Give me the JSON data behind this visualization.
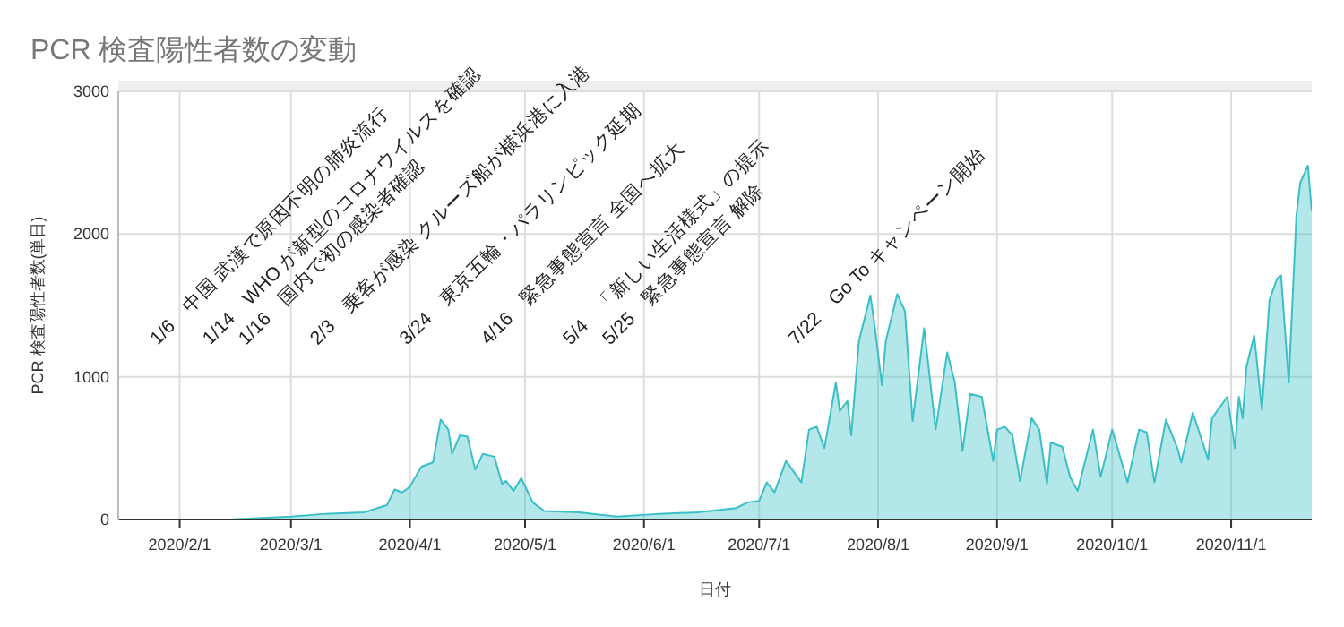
{
  "chart_data": {
    "type": "area",
    "title": "PCR 検査陽性者数の変動",
    "xlabel": "日付",
    "ylabel": "PCR 検査陽性者数(単日)",
    "xlim": [
      "2020-01-16",
      "2020-11-22"
    ],
    "ylim": [
      0,
      3000
    ],
    "yticks": [
      0,
      1000,
      2000,
      3000
    ],
    "xticks": [
      {
        "value": "2020-02-01",
        "label": "2020/2/1"
      },
      {
        "value": "2020-03-01",
        "label": "2020/3/1"
      },
      {
        "value": "2020-04-01",
        "label": "2020/4/1"
      },
      {
        "value": "2020-05-01",
        "label": "2020/5/1"
      },
      {
        "value": "2020-06-01",
        "label": "2020/6/1"
      },
      {
        "value": "2020-07-01",
        "label": "2020/7/1"
      },
      {
        "value": "2020-08-01",
        "label": "2020/8/1"
      },
      {
        "value": "2020-09-01",
        "label": "2020/9/1"
      },
      {
        "value": "2020-10-01",
        "label": "2020/10/1"
      },
      {
        "value": "2020-11-01",
        "label": "2020/11/1"
      }
    ],
    "grid": true,
    "x": [
      "2020-01-16",
      "2020-02-14",
      "2020-03-01",
      "2020-03-10",
      "2020-03-20",
      "2020-03-26",
      "2020-03-28",
      "2020-03-30",
      "2020-04-01",
      "2020-04-04",
      "2020-04-07",
      "2020-04-09",
      "2020-04-11",
      "2020-04-12",
      "2020-04-14",
      "2020-04-16",
      "2020-04-18",
      "2020-04-20",
      "2020-04-23",
      "2020-04-25",
      "2020-04-26",
      "2020-04-28",
      "2020-04-30",
      "2020-05-03",
      "2020-05-06",
      "2020-05-15",
      "2020-05-25",
      "2020-06-05",
      "2020-06-15",
      "2020-06-25",
      "2020-06-28",
      "2020-07-01",
      "2020-07-03",
      "2020-07-05",
      "2020-07-08",
      "2020-07-12",
      "2020-07-14",
      "2020-07-16",
      "2020-07-18",
      "2020-07-21",
      "2020-07-22",
      "2020-07-24",
      "2020-07-25",
      "2020-07-27",
      "2020-07-30",
      "2020-07-31",
      "2020-08-02",
      "2020-08-03",
      "2020-08-06",
      "2020-08-08",
      "2020-08-10",
      "2020-08-13",
      "2020-08-16",
      "2020-08-19",
      "2020-08-21",
      "2020-08-23",
      "2020-08-25",
      "2020-08-28",
      "2020-08-31",
      "2020-09-01",
      "2020-09-03",
      "2020-09-05",
      "2020-09-07",
      "2020-09-10",
      "2020-09-12",
      "2020-09-14",
      "2020-09-15",
      "2020-09-18",
      "2020-09-20",
      "2020-09-22",
      "2020-09-26",
      "2020-09-28",
      "2020-10-01",
      "2020-10-05",
      "2020-10-08",
      "2020-10-10",
      "2020-10-12",
      "2020-10-15",
      "2020-10-18",
      "2020-10-19",
      "2020-10-22",
      "2020-10-26",
      "2020-10-27",
      "2020-10-31",
      "2020-11-02",
      "2020-11-03",
      "2020-11-04",
      "2020-11-05",
      "2020-11-07",
      "2020-11-09",
      "2020-11-11",
      "2020-11-13",
      "2020-11-14",
      "2020-11-16",
      "2020-11-18",
      "2020-11-19",
      "2020-11-21",
      "2020-11-22"
    ],
    "series": [
      {
        "color": "#3bbfc6",
        "values": [
          0,
          0,
          20,
          40,
          50,
          100,
          210,
          190,
          230,
          370,
          400,
          700,
          630,
          460,
          590,
          580,
          350,
          460,
          440,
          250,
          270,
          200,
          290,
          120,
          60,
          50,
          20,
          40,
          50,
          80,
          120,
          130,
          260,
          190,
          410,
          260,
          630,
          650,
          500,
          960,
          760,
          830,
          590,
          1250,
          1570,
          1380,
          940,
          1250,
          1580,
          1460,
          690,
          1340,
          630,
          1170,
          960,
          480,
          880,
          860,
          410,
          630,
          650,
          590,
          270,
          710,
          630,
          250,
          540,
          510,
          300,
          200,
          630,
          300,
          630,
          260,
          630,
          610,
          260,
          700,
          500,
          400,
          750,
          420,
          710,
          860,
          500,
          860,
          710,
          1070,
          1290,
          770,
          1540,
          1690,
          1710,
          960,
          2130,
          2360,
          2480,
          2160
        ]
      }
    ],
    "annotations": [
      {
        "text": "1/6　中国 武漢で原因不明の肺炎流行"
      },
      {
        "text": "1/14　WHO が新型のコロナウイルスを確認"
      },
      {
        "text": "1/16　国内で初の感染者確認"
      },
      {
        "text": "2/3　乗客が感染 クルーズ船が横浜港に入港"
      },
      {
        "text": "3/24　東京五輪・パラリンピック延期"
      },
      {
        "text": "4/16　緊急事態宣言 全国へ拡大"
      },
      {
        "text": "5/4　「新しい生活様式」の提示"
      },
      {
        "text": "5/25　緊急事態宣言 解除"
      },
      {
        "text": "7/22　Go To キャンペーン開始"
      }
    ]
  }
}
